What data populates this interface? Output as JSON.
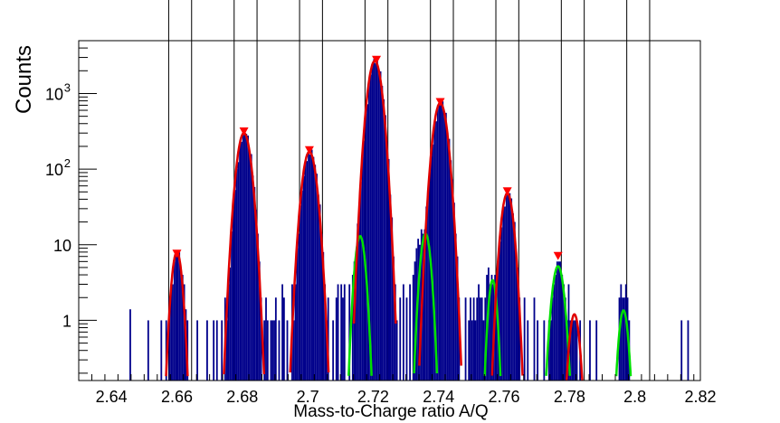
{
  "chart_data": {
    "type": "histogram",
    "xlabel": "Mass-to-Charge ratio A/Q",
    "ylabel": "Counts",
    "xlim": [
      2.63,
      2.82
    ],
    "ylim": [
      0.16,
      5000
    ],
    "y_scale": "log",
    "x_ticks": [
      "2.64",
      "2.66",
      "2.68",
      "2.7",
      "2.72",
      "2.74",
      "2.76",
      "2.78",
      "2.8",
      "2.82"
    ],
    "x_tick_values": [
      2.64,
      2.66,
      2.68,
      2.7,
      2.72,
      2.74,
      2.76,
      2.78,
      2.8,
      2.82
    ],
    "y_ticks": [
      {
        "value": 1,
        "label": "1",
        "sup": ""
      },
      {
        "value": 10,
        "label": "10",
        "sup": ""
      },
      {
        "value": 100,
        "label": "10",
        "sup": "2"
      },
      {
        "value": 1000,
        "label": "10",
        "sup": "3"
      }
    ],
    "vertical_lines": [
      2.6575,
      2.6645,
      2.6775,
      2.6845,
      2.6975,
      2.7045,
      2.7175,
      2.7245,
      2.7375,
      2.7445,
      2.7575,
      2.7645,
      2.7775,
      2.7845,
      2.7975,
      2.8045
    ],
    "peaks_red": [
      {
        "mean": 2.66,
        "amplitude": 8,
        "sigma": 0.0012
      },
      {
        "mean": 2.6805,
        "amplitude": 300,
        "sigma": 0.0016
      },
      {
        "mean": 2.7005,
        "amplitude": 170,
        "sigma": 0.0016
      },
      {
        "mean": 2.7205,
        "amplitude": 2700,
        "sigma": 0.0016
      },
      {
        "mean": 2.7405,
        "amplitude": 750,
        "sigma": 0.0016
      },
      {
        "mean": 2.761,
        "amplitude": 48,
        "sigma": 0.0014
      },
      {
        "mean": 2.7815,
        "amplitude": 1.2,
        "sigma": 0.0012
      }
    ],
    "peaks_green": [
      {
        "mean": 2.716,
        "amplitude": 13,
        "sigma": 0.0012
      },
      {
        "mean": 2.736,
        "amplitude": 14,
        "sigma": 0.0012
      },
      {
        "mean": 2.7565,
        "amplitude": 3.4,
        "sigma": 0.001
      },
      {
        "mean": 2.7765,
        "amplitude": 5.2,
        "sigma": 0.0014
      },
      {
        "mean": 2.7965,
        "amplitude": 1.35,
        "sigma": 0.0011
      }
    ],
    "markers": [
      {
        "x": 2.66,
        "y": 7.5
      },
      {
        "x": 2.6805,
        "y": 310
      },
      {
        "x": 2.7005,
        "y": 175
      },
      {
        "x": 2.721,
        "y": 2750
      },
      {
        "x": 2.7405,
        "y": 760
      },
      {
        "x": 2.761,
        "y": 50
      },
      {
        "x": 2.7765,
        "y": 7
      }
    ],
    "bin_width": 0.0005,
    "background_bins": [
      [
        2.6455,
        1.4
      ],
      [
        2.651,
        1
      ],
      [
        2.655,
        1
      ],
      [
        2.6565,
        1
      ],
      [
        2.6575,
        2
      ],
      [
        2.658,
        3
      ],
      [
        2.6585,
        1
      ],
      [
        2.662,
        3
      ],
      [
        2.6625,
        1.4
      ],
      [
        2.663,
        1
      ],
      [
        2.666,
        1
      ],
      [
        2.669,
        1
      ],
      [
        2.671,
        1
      ],
      [
        2.672,
        1
      ],
      [
        2.6735,
        1
      ],
      [
        2.6745,
        2
      ],
      [
        2.675,
        1
      ],
      [
        2.6755,
        1
      ],
      [
        2.676,
        2
      ],
      [
        2.677,
        3
      ],
      [
        2.6865,
        1
      ],
      [
        2.687,
        2
      ],
      [
        2.6875,
        1
      ],
      [
        2.6885,
        1
      ],
      [
        2.689,
        1
      ],
      [
        2.6895,
        1
      ],
      [
        2.69,
        2
      ],
      [
        2.691,
        1
      ],
      [
        2.692,
        3
      ],
      [
        2.6925,
        2
      ],
      [
        2.6935,
        1
      ],
      [
        2.695,
        3
      ],
      [
        2.6965,
        1
      ],
      [
        2.706,
        2
      ],
      [
        2.7075,
        1
      ],
      [
        2.7085,
        2
      ],
      [
        2.709,
        3
      ],
      [
        2.71,
        3
      ],
      [
        2.7105,
        2
      ],
      [
        2.711,
        3
      ],
      [
        2.7125,
        3
      ],
      [
        2.7135,
        4
      ],
      [
        2.714,
        6
      ],
      [
        2.7145,
        8
      ],
      [
        2.7185,
        3
      ],
      [
        2.719,
        2
      ],
      [
        2.72,
        3
      ],
      [
        2.7215,
        1
      ],
      [
        2.726,
        2
      ],
      [
        2.7265,
        3
      ],
      [
        2.727,
        1
      ],
      [
        2.728,
        2
      ],
      [
        2.729,
        3
      ],
      [
        2.73,
        2
      ],
      [
        2.731,
        3
      ],
      [
        2.732,
        4
      ],
      [
        2.7325,
        6
      ],
      [
        2.733,
        9
      ],
      [
        2.7335,
        12
      ],
      [
        2.734,
        10
      ],
      [
        2.7345,
        16
      ],
      [
        2.735,
        11
      ],
      [
        2.7355,
        6
      ],
      [
        2.7385,
        3
      ],
      [
        2.748,
        2
      ],
      [
        2.749,
        1
      ],
      [
        2.7495,
        2
      ],
      [
        2.75,
        1
      ],
      [
        2.7505,
        2
      ],
      [
        2.751,
        1
      ],
      [
        2.7515,
        2
      ],
      [
        2.752,
        3
      ],
      [
        2.7525,
        2
      ],
      [
        2.753,
        2
      ],
      [
        2.7535,
        1
      ],
      [
        2.754,
        2
      ],
      [
        2.7545,
        4
      ],
      [
        2.755,
        5
      ],
      [
        2.7555,
        3
      ],
      [
        2.756,
        4
      ],
      [
        2.7565,
        2
      ],
      [
        2.757,
        3
      ],
      [
        2.7575,
        2
      ],
      [
        2.758,
        1
      ],
      [
        2.766,
        2
      ],
      [
        2.767,
        1
      ],
      [
        2.769,
        2
      ],
      [
        2.77,
        1
      ],
      [
        2.772,
        1
      ],
      [
        2.7735,
        1
      ],
      [
        2.775,
        2
      ],
      [
        2.7755,
        3
      ],
      [
        2.776,
        6
      ],
      [
        2.7765,
        6
      ],
      [
        2.777,
        5
      ],
      [
        2.7775,
        4
      ],
      [
        2.778,
        2
      ],
      [
        2.7785,
        2
      ],
      [
        2.779,
        1
      ],
      [
        2.7795,
        3
      ],
      [
        2.78,
        1
      ],
      [
        2.783,
        1
      ],
      [
        2.786,
        1
      ],
      [
        2.788,
        1
      ],
      [
        2.795,
        2
      ],
      [
        2.7955,
        3
      ],
      [
        2.796,
        2
      ],
      [
        2.7965,
        2
      ],
      [
        2.797,
        3
      ],
      [
        2.7975,
        2
      ],
      [
        2.798,
        1
      ],
      [
        2.814,
        1
      ],
      [
        2.816,
        1
      ]
    ]
  }
}
